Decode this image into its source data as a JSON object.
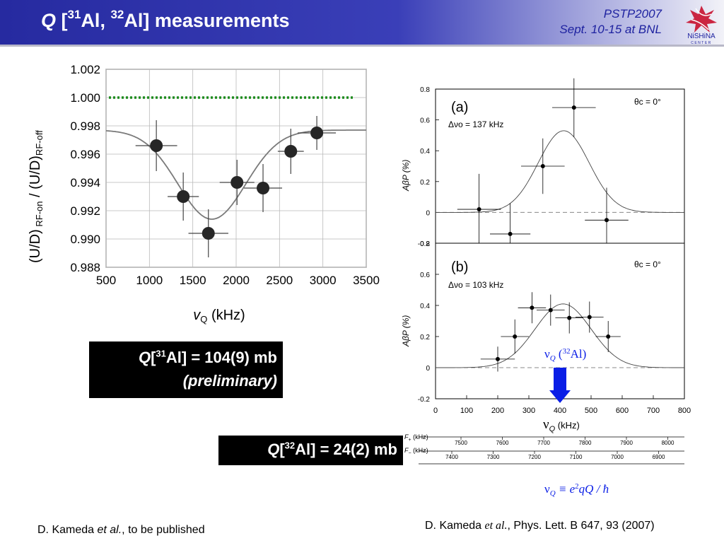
{
  "header": {
    "title_q": "Q",
    "title_open": " [",
    "title_mass1": "31",
    "title_el1": "Al, ",
    "title_mass2": "32",
    "title_el2": "Al] measurements",
    "conference_line1": "PSTP2007",
    "conference_line2": "Sept. 10-15 at BNL",
    "logo_text": "NiSHiNA",
    "logo_subtext": "CENTER",
    "colors": {
      "bar_left": "#262aa0",
      "bar_right": "#f2f2f8",
      "conference_text": "#1e22a0",
      "logo_red": "#c8102e"
    }
  },
  "result_31": {
    "label_q": "Q",
    "label_open": "[",
    "mass": "31",
    "label_rest": "Al] = 104(9) mb",
    "note": "(preliminary)"
  },
  "result_32": {
    "label_q": "Q",
    "label_open": "[",
    "mass": "32",
    "label_rest": "Al] = 24(2) mb"
  },
  "references": {
    "left_prefix": "D. Kameda ",
    "left_etal": "et al.",
    "left_suffix": ", to be published",
    "right_prefix": "D. Kameda ",
    "right_etal": "et al.",
    "right_suffix": ", Phys. Lett. B 647, 93 (2007)"
  },
  "chart_data": [
    {
      "type": "scatter",
      "xlabel": "νQ (kHz)",
      "ylabel": "(U/D) RF-on / (U/D)RF-off",
      "xlim": [
        500,
        3500
      ],
      "ylim": [
        0.988,
        1.002
      ],
      "x_ticks": [
        500,
        1000,
        1500,
        2000,
        2500,
        3000,
        3500
      ],
      "y_ticks": [
        0.988,
        0.99,
        0.992,
        0.994,
        0.996,
        0.998,
        1.0,
        1.002
      ],
      "y_tick_labels": [
        "0.988",
        "0.990",
        "0.992",
        "0.994",
        "0.996",
        "0.998",
        "1.000",
        "1.002"
      ],
      "grid": true,
      "reference_line": {
        "y": 1.0,
        "style": "dotted",
        "color": "#1e8c1e"
      },
      "points": [
        {
          "x": 1080,
          "y": 0.9966,
          "xerr": 240,
          "yerr": 0.0018
        },
        {
          "x": 1390,
          "y": 0.993,
          "xerr": 180,
          "yerr": 0.0017
        },
        {
          "x": 1680,
          "y": 0.9904,
          "xerr": 230,
          "yerr": 0.0017
        },
        {
          "x": 2010,
          "y": 0.994,
          "xerr": 200,
          "yerr": 0.0016
        },
        {
          "x": 2310,
          "y": 0.9936,
          "xerr": 220,
          "yerr": 0.0017
        },
        {
          "x": 2630,
          "y": 0.9962,
          "xerr": 150,
          "yerr": 0.0016
        },
        {
          "x": 2930,
          "y": 0.9975,
          "xerr": 220,
          "yerr": 0.0012
        }
      ],
      "fit_curve": {
        "baseline": 0.9977,
        "center": 1720,
        "depth": 0.0063,
        "sigma": 390
      }
    },
    {
      "type": "scatter",
      "panel": "(a)",
      "annotation_width": "Δνo = 137 kHz",
      "annotation_angle": "θc = 0°",
      "ylabel": "AβP (%)",
      "xlim": [
        0,
        800
      ],
      "ylim": [
        -0.2,
        0.8
      ],
      "y_ticks": [
        -0.2,
        0,
        0.2,
        0.4,
        0.6,
        0.8
      ],
      "y_tick_labels": [
        "-0.2",
        "0",
        "0.2",
        "0.4",
        "0.6",
        "0.8"
      ],
      "points": [
        {
          "x": 140,
          "y": 0.02,
          "xerr": 70,
          "yerr": 0.23
        },
        {
          "x": 240,
          "y": -0.14,
          "xerr": 65,
          "yerr": 0.2
        },
        {
          "x": 345,
          "y": 0.3,
          "xerr": 70,
          "yerr": 0.18
        },
        {
          "x": 445,
          "y": 0.68,
          "xerr": 70,
          "yerr": 0.19
        },
        {
          "x": 550,
          "y": -0.05,
          "xerr": 70,
          "yerr": 0.21
        }
      ],
      "fit_curve": {
        "amplitude": 0.53,
        "center": 412,
        "sigma": 82
      }
    },
    {
      "type": "scatter",
      "panel": "(b)",
      "annotation_width": "Δνo = 103 kHz",
      "annotation_angle": "θc = 0°",
      "ylabel": "AβP (%)",
      "xlabel": "νQ (kHz)",
      "xlim": [
        0,
        800
      ],
      "ylim": [
        -0.2,
        0.8
      ],
      "x_ticks": [
        0,
        100,
        200,
        300,
        400,
        500,
        600,
        700,
        800
      ],
      "y_ticks": [
        -0.2,
        0,
        0.2,
        0.4,
        0.6,
        0.8
      ],
      "y_tick_labels": [
        "-0.2",
        "0",
        "0.2",
        "0.4",
        "0.6",
        "0.8"
      ],
      "points": [
        {
          "x": 200,
          "y": 0.055,
          "xerr": 55,
          "yerr": 0.08
        },
        {
          "x": 255,
          "y": 0.2,
          "xerr": 45,
          "yerr": 0.11
        },
        {
          "x": 310,
          "y": 0.385,
          "xerr": 45,
          "yerr": 0.1
        },
        {
          "x": 370,
          "y": 0.37,
          "xerr": 45,
          "yerr": 0.1
        },
        {
          "x": 430,
          "y": 0.32,
          "xerr": 45,
          "yerr": 0.1
        },
        {
          "x": 495,
          "y": 0.325,
          "xerr": 45,
          "yerr": 0.1
        },
        {
          "x": 555,
          "y": 0.2,
          "xerr": 40,
          "yerr": 0.1
        }
      ],
      "fit_curve": {
        "amplitude": 0.41,
        "center": 410,
        "sigma": 90
      },
      "arrow_label_nu": "ν",
      "arrow_label_q": "Q",
      "arrow_label_open": " (",
      "arrow_label_mass": "32",
      "arrow_label_el": "Al)",
      "arrow_x": 400,
      "arrow_color": "#0a1ee6"
    }
  ],
  "frequency_scales": {
    "f_plus_label": "F+ (kHz)",
    "f_minus_label": "F− (kHz)",
    "f_plus_ticks": [
      "7500",
      "7600",
      "7700",
      "7800",
      "7900",
      "8000"
    ],
    "f_minus_ticks": [
      "7400",
      "7300",
      "7200",
      "7100",
      "7000",
      "6900"
    ]
  },
  "formula": {
    "nu": "ν",
    "sub_q": "Q",
    "equiv": " ≡ e",
    "sup_2": "2",
    "rest": "qQ / ħ"
  }
}
